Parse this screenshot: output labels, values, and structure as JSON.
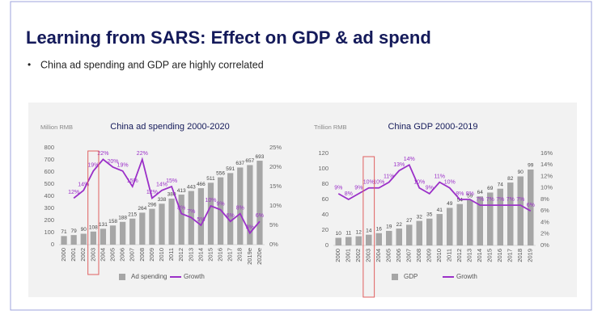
{
  "title": "Learning from SARS: Effect on GDP & ad spend",
  "bullet": "China ad spending and GDP are highly correlated",
  "chart_data": [
    {
      "type": "bar",
      "title": "China ad spending 2000-2020",
      "y_label": "Million RMB",
      "categories": [
        "2000",
        "2001",
        "2002",
        "2003",
        "2004",
        "2005",
        "2006",
        "2007",
        "2008",
        "2009",
        "2010",
        "2011",
        "2012",
        "2013",
        "2014",
        "2015",
        "2016",
        "2017",
        "2018",
        "2019e",
        "2020e"
      ],
      "series": [
        {
          "name": "Ad spending",
          "color": "#a6a6a6",
          "values": [
            71,
            79,
            90,
            108,
            131,
            158,
            188,
            215,
            264,
            296,
            338,
            380,
            413,
            443,
            466,
            511,
            556,
            591,
            637,
            657,
            693
          ]
        },
        {
          "name": "Growth",
          "color": "#9b30c8",
          "axis": "y2",
          "type": "line",
          "values": [
            null,
            12,
            14,
            19,
            22,
            20,
            19,
            15,
            22,
            12,
            14,
            15,
            8,
            7,
            5,
            10,
            9,
            6,
            8,
            3,
            6
          ],
          "value_labels": [
            null,
            "12%",
            "14%",
            "19%",
            "22%",
            "20%",
            "19%",
            "15%",
            "22%",
            "12%",
            "14%",
            "15%",
            "8%",
            "7%",
            "5%",
            "10%",
            "9%",
            "6%",
            "8%",
            "3%",
            "6%"
          ]
        }
      ],
      "ylim": [
        0,
        800
      ],
      "yticks": [
        0,
        100,
        200,
        300,
        400,
        500,
        600,
        700,
        800
      ],
      "y2lim": [
        0,
        25
      ],
      "y2ticks": [
        {
          "value": 0,
          "label": "0%"
        },
        {
          "value": 5,
          "label": "5%"
        },
        {
          "value": 10,
          "label": "10%"
        },
        {
          "value": 15,
          "label": "15%"
        },
        {
          "value": 20,
          "label": "20%"
        },
        {
          "value": 25,
          "label": "25%"
        }
      ]
    },
    {
      "type": "bar",
      "title": "China GDP 2000-2019",
      "y_label": "Trillion RMB",
      "categories": [
        "2000",
        "2001",
        "2002",
        "2003",
        "2004",
        "2005",
        "2006",
        "2007",
        "2008",
        "2009",
        "2010",
        "2011",
        "2012",
        "2013",
        "2014",
        "2015",
        "2016",
        "2017",
        "2018",
        "2019"
      ],
      "series": [
        {
          "name": "GDP",
          "color": "#a6a6a6",
          "values": [
            10,
            11,
            12,
            14,
            16,
            19,
            22,
            27,
            32,
            35,
            41,
            49,
            54,
            59,
            64,
            69,
            74,
            82,
            90,
            99
          ]
        },
        {
          "name": "Growth",
          "color": "#9b30c8",
          "axis": "y2",
          "type": "line",
          "values": [
            9,
            8,
            9,
            10,
            10,
            11,
            13,
            14,
            10,
            9,
            11,
            10,
            8,
            8,
            7,
            7,
            7,
            7,
            7,
            6
          ],
          "value_labels": [
            "9%",
            "8%",
            "9%",
            "10%",
            "10%",
            "11%",
            "13%",
            "14%",
            "10%",
            "9%",
            "11%",
            "10%",
            "8%",
            "8%",
            "7%",
            "7%",
            "7%",
            "7%",
            "7%",
            "6%"
          ]
        }
      ],
      "ylim": [
        0,
        120
      ],
      "yticks": [
        0,
        20,
        40,
        60,
        80,
        100,
        120
      ],
      "y2lim": [
        0,
        16
      ],
      "y2ticks": [
        {
          "value": 0,
          "label": "0%"
        },
        {
          "value": 2,
          "label": "2%"
        },
        {
          "value": 4,
          "label": "4%"
        },
        {
          "value": 6,
          "label": "6%"
        },
        {
          "value": 8,
          "label": "8%"
        },
        {
          "value": 10,
          "label": "10%"
        },
        {
          "value": 12,
          "label": "12%"
        },
        {
          "value": 14,
          "label": "14%"
        },
        {
          "value": 16,
          "label": "16%"
        }
      ]
    }
  ]
}
